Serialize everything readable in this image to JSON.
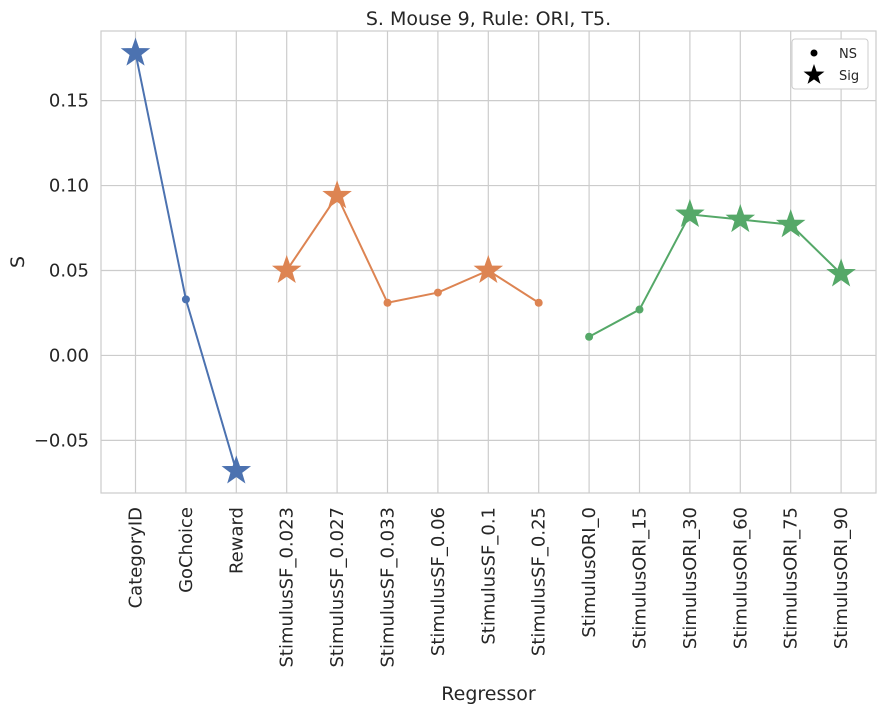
{
  "chart_data": {
    "type": "line",
    "title": "S. Mouse 9, Rule: ORI, T5.",
    "xlabel": "Regressor",
    "ylabel": "S",
    "categories": [
      "CategoryID",
      "GoChoice",
      "Reward",
      "StimulusSF_0.023",
      "StimulusSF_0.027",
      "StimulusSF_0.033",
      "StimulusSF_0.06",
      "StimulusSF_0.1",
      "StimulusSF_0.25",
      "StimulusORI_0",
      "StimulusORI_15",
      "StimulusORI_30",
      "StimulusORI_60",
      "StimulusORI_75",
      "StimulusORI_90"
    ],
    "ylim": [
      -0.081,
      0.191
    ],
    "yticks": [
      -0.05,
      0.0,
      0.05,
      0.1,
      0.15
    ],
    "ytick_labels": [
      "−0.05",
      "0.00",
      "0.05",
      "0.10",
      "0.15"
    ],
    "grid": true,
    "series": [
      {
        "color": "#4c72b0",
        "points": [
          {
            "category": "CategoryID",
            "value": 0.178,
            "sig": true
          },
          {
            "category": "GoChoice",
            "value": 0.033,
            "sig": false
          },
          {
            "category": "Reward",
            "value": -0.068,
            "sig": true
          }
        ]
      },
      {
        "color": "#dd8452",
        "points": [
          {
            "category": "StimulusSF_0.023",
            "value": 0.05,
            "sig": true
          },
          {
            "category": "StimulusSF_0.027",
            "value": 0.094,
            "sig": true
          },
          {
            "category": "StimulusSF_0.033",
            "value": 0.031,
            "sig": false
          },
          {
            "category": "StimulusSF_0.06",
            "value": 0.037,
            "sig": false
          },
          {
            "category": "StimulusSF_0.1",
            "value": 0.05,
            "sig": true
          },
          {
            "category": "StimulusSF_0.25",
            "value": 0.031,
            "sig": false
          }
        ]
      },
      {
        "color": "#55a868",
        "points": [
          {
            "category": "StimulusORI_0",
            "value": 0.011,
            "sig": false
          },
          {
            "category": "StimulusORI_15",
            "value": 0.027,
            "sig": false
          },
          {
            "category": "StimulusORI_30",
            "value": 0.083,
            "sig": true
          },
          {
            "category": "StimulusORI_60",
            "value": 0.08,
            "sig": true
          },
          {
            "category": "StimulusORI_75",
            "value": 0.077,
            "sig": true
          },
          {
            "category": "StimulusORI_90",
            "value": 0.048,
            "sig": true
          }
        ]
      }
    ],
    "legend": {
      "position": "top-right",
      "entries": [
        {
          "marker": "dot",
          "label": "NS"
        },
        {
          "marker": "star",
          "label": "Sig"
        }
      ]
    }
  }
}
